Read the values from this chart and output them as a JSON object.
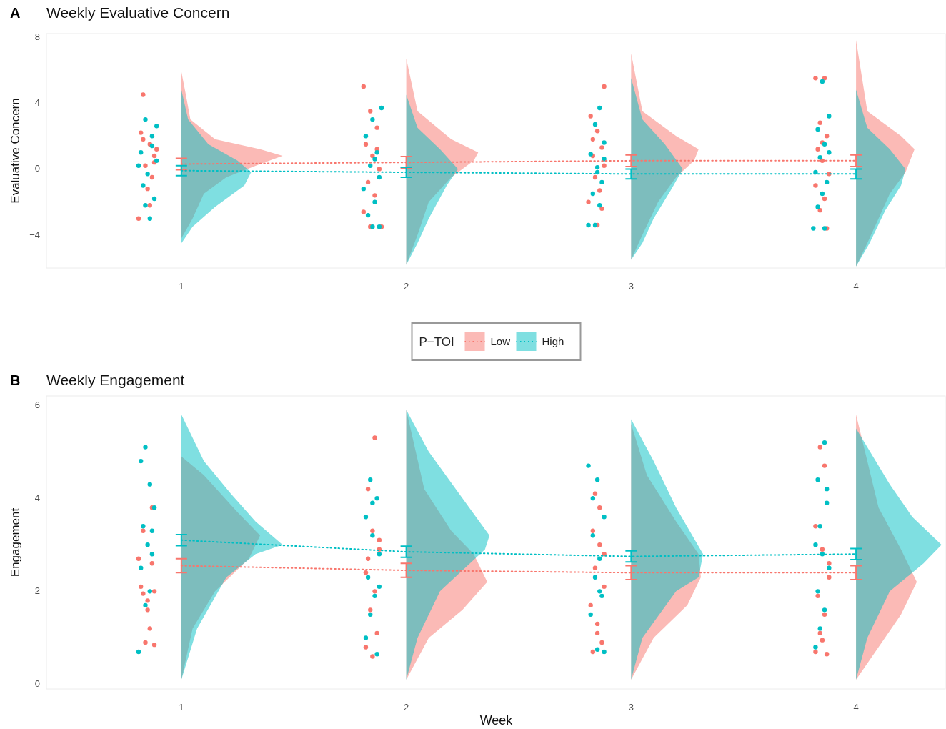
{
  "chart_data": [
    {
      "type": "scatter",
      "title": "Weekly Evaluative Concern",
      "ylabel": "Evaluative Concern",
      "annotations": [
        "A"
      ],
      "legend_title": "P−TOI",
      "legend": "bottom",
      "grid": false,
      "xlim": [
        0.4,
        4.4
      ],
      "xticks": [
        1,
        2,
        3,
        4
      ],
      "ylim": [
        -6,
        8.2
      ],
      "yticks": [
        -4,
        0,
        4,
        8
      ],
      "series": [
        {
          "type": "area",
          "color": "#f8766d",
          "x": [
            1,
            1.05,
            1.1,
            1.2,
            1.35,
            1.45,
            1.35,
            1.15,
            1.04,
            1.02,
            1,
            null,
            2,
            2.05,
            2.1,
            2.2,
            2.3,
            2.32,
            2.2,
            2.05,
            2,
            null,
            3,
            3.05,
            3.12,
            3.2,
            3.28,
            3.3,
            3.2,
            3.05,
            3,
            null,
            4,
            4.05,
            4.1,
            4.15,
            4.22,
            4.26,
            4.2,
            4.05,
            4
          ],
          "values": [
            -4.2,
            -3,
            -1.5,
            -0.5,
            0.3,
            0.8,
            1.2,
            1.8,
            3,
            4.5,
            5.9,
            null,
            -5.8,
            -4,
            -2,
            -0.5,
            0.5,
            1,
            1.8,
            3.5,
            6.7,
            null,
            -5.5,
            -4,
            -2,
            -0.5,
            0.5,
            1.2,
            2,
            3.5,
            7,
            null,
            -5.9,
            -4.5,
            -3,
            -1.5,
            -0.2,
            1.2,
            2,
            3.5,
            7.8
          ]
        },
        {
          "type": "area",
          "color": "#00bfc4",
          "x": [
            1,
            1.05,
            1.15,
            1.28,
            1.31,
            1.25,
            1.12,
            1.03,
            1,
            null,
            2,
            2.05,
            2.1,
            2.18,
            2.23,
            2.15,
            2.05,
            2,
            null,
            3,
            3.05,
            3.1,
            3.18,
            3.23,
            3.15,
            3.05,
            3,
            null,
            4,
            4.06,
            4.13,
            4.2,
            4.22,
            4.15,
            4.05,
            4
          ],
          "values": [
            -4.5,
            -3.5,
            -2.3,
            -1,
            -0.2,
            0.5,
            1.5,
            3,
            4.8,
            null,
            -5.8,
            -4.5,
            -3,
            -1,
            0,
            1.2,
            2.5,
            4.5,
            null,
            -5.5,
            -4.5,
            -3,
            -1.2,
            0,
            1.5,
            3,
            5.5,
            null,
            -5.9,
            -4.5,
            -2.5,
            -1,
            0,
            1.2,
            2.5,
            4.8
          ]
        },
        {
          "type": "scatter",
          "color": "#f8766d",
          "x": [
            0.83,
            0.86,
            0.88,
            0.84,
            0.87,
            0.82,
            0.89,
            0.85,
            0.81,
            0.86,
            0.88,
            0.83,
            1.81,
            1.84,
            1.87,
            1.82,
            1.85,
            1.88,
            1.83,
            1.86,
            1.81,
            1.89,
            1.84,
            1.87,
            2.82,
            2.85,
            2.87,
            2.83,
            2.88,
            2.84,
            2.86,
            2.81,
            2.87,
            2.85,
            2.88,
            2.83,
            3.82,
            3.86,
            3.84,
            3.87,
            3.83,
            3.85,
            3.88,
            3.82,
            3.86,
            3.84,
            3.87,
            3.85
          ],
          "values": [
            4.5,
            1.5,
            0.8,
            0.2,
            -0.5,
            2.2,
            1.2,
            -1.2,
            -3,
            -2.2,
            0.4,
            1.8,
            5,
            3.5,
            2.5,
            1.5,
            0.8,
            0,
            -0.8,
            -1.6,
            -2.6,
            -3.5,
            -3.5,
            1.2,
            3.2,
            2.3,
            1.3,
            0.8,
            0.2,
            -0.5,
            -1.3,
            -2,
            -2.4,
            -3.4,
            5,
            1.8,
            5.5,
            5.5,
            2.8,
            2,
            1.2,
            0.5,
            -0.3,
            -1,
            -1.8,
            -2.5,
            -3.6,
            1.6
          ]
        },
        {
          "type": "scatter",
          "color": "#00bfc4",
          "x": [
            0.84,
            0.87,
            0.82,
            0.89,
            0.85,
            0.83,
            0.88,
            0.86,
            0.81,
            0.87,
            0.84,
            0.89,
            1.89,
            1.85,
            1.82,
            1.87,
            1.84,
            1.88,
            1.81,
            1.86,
            1.83,
            1.85,
            1.88,
            1.86,
            2.86,
            2.84,
            2.88,
            2.82,
            2.85,
            2.87,
            2.83,
            2.86,
            2.84,
            2.81,
            2.88,
            2.85,
            3.85,
            3.88,
            3.83,
            3.86,
            3.84,
            3.82,
            3.87,
            3.85,
            3.83,
            3.86,
            3.81,
            3.88
          ],
          "values": [
            3,
            2,
            1,
            0.5,
            -0.3,
            -1,
            -1.8,
            -3,
            0.2,
            1.4,
            -2.2,
            2.6,
            3.7,
            3,
            2,
            1,
            0.2,
            -0.5,
            -1.2,
            -2,
            -2.8,
            -3.5,
            -3.5,
            0.6,
            3.7,
            2.7,
            1.6,
            0.9,
            0.1,
            -0.8,
            -1.5,
            -2.2,
            -3.4,
            -3.4,
            0.6,
            -0.2,
            5.3,
            3.2,
            2.4,
            1.5,
            0.7,
            -0.2,
            -0.8,
            -1.5,
            -2.3,
            -3.6,
            -3.6,
            1
          ]
        },
        {
          "type": "line",
          "name": "Low",
          "color": "#f8766d",
          "line_style": "dotted",
          "marker": "none",
          "x": [
            1,
            2,
            3,
            4
          ],
          "values": [
            0.3,
            0.4,
            0.5,
            0.5
          ],
          "errors": [
            0.35,
            0.35,
            0.35,
            0.35
          ]
        },
        {
          "type": "line",
          "name": "High",
          "color": "#00bfc4",
          "line_style": "dotted",
          "marker": "none",
          "x": [
            1,
            2,
            3,
            4
          ],
          "values": [
            -0.1,
            -0.2,
            -0.3,
            -0.3
          ],
          "errors": [
            0.3,
            0.3,
            0.3,
            0.3
          ]
        }
      ]
    },
    {
      "type": "scatter",
      "title": "Weekly Engagement",
      "ylabel": "Engagement",
      "xlabel": "Week",
      "annotations": [
        "B"
      ],
      "grid": false,
      "xlim": [
        0.4,
        4.4
      ],
      "xticks": [
        1,
        2,
        3,
        4
      ],
      "ylim": [
        -0.1,
        6.2
      ],
      "yticks": [
        0,
        2,
        4,
        6
      ],
      "series": [
        {
          "type": "area",
          "color": "#f8766d",
          "x": [
            1,
            1.05,
            1.15,
            1.3,
            1.35,
            1.25,
            1.1,
            1,
            null,
            2,
            2.1,
            2.25,
            2.36,
            2.3,
            2.2,
            2.08,
            2,
            null,
            3,
            3.1,
            3.25,
            3.31,
            3.3,
            3.2,
            3.07,
            3,
            null,
            4,
            4.1,
            4.2,
            4.27,
            4.2,
            4.1,
            4.05,
            4
          ],
          "values": [
            0.1,
            1.2,
            2,
            2.7,
            3.2,
            3.7,
            4.5,
            4.9,
            null,
            0.1,
            1,
            1.6,
            2.2,
            2.8,
            3.3,
            4.2,
            5.9,
            null,
            0.1,
            1,
            1.7,
            2.3,
            2.8,
            3.5,
            4.5,
            5.6,
            null,
            0.1,
            0.8,
            1.5,
            2.2,
            2.9,
            3.8,
            4.8,
            5.8
          ]
        },
        {
          "type": "area",
          "color": "#00bfc4",
          "x": [
            1,
            1.07,
            1.2,
            1.33,
            1.45,
            1.33,
            1.22,
            1.1,
            1,
            null,
            2,
            2.05,
            2.15,
            2.35,
            2.37,
            2.28,
            2.1,
            2,
            null,
            3,
            3.05,
            3.2,
            3.3,
            3.32,
            3.2,
            3.1,
            3,
            null,
            4,
            4.05,
            4.15,
            4.3,
            4.38,
            4.25,
            4.15,
            4
          ],
          "values": [
            0.1,
            1.2,
            2.3,
            2.8,
            3,
            3.5,
            4.1,
            4.8,
            5.8,
            null,
            0.1,
            1,
            2,
            2.9,
            3.2,
            3.8,
            5,
            5.9,
            null,
            0.1,
            1,
            2,
            2.3,
            2.8,
            3.8,
            4.8,
            5.7,
            null,
            0.1,
            1,
            2,
            2.6,
            3,
            3.6,
            4.3,
            5.5
          ]
        },
        {
          "type": "scatter",
          "color": "#f8766d",
          "x": [
            0.82,
            0.85,
            0.87,
            0.83,
            0.88,
            0.84,
            0.86,
            0.81,
            0.85,
            0.87,
            0.83,
            0.88,
            1.86,
            1.83,
            1.85,
            1.88,
            1.82,
            1.86,
            1.84,
            1.87,
            1.82,
            1.85,
            1.88,
            1.83,
            2.83,
            2.86,
            2.84,
            2.88,
            2.82,
            2.85,
            2.87,
            2.83,
            2.86,
            2.84,
            2.88,
            2.85,
            3.84,
            3.86,
            3.82,
            3.85,
            3.88,
            3.83,
            3.86,
            3.84,
            3.82,
            3.87,
            3.85,
            3.88
          ],
          "values": [
            2.1,
            1.8,
            2.6,
            3.3,
            2,
            0.9,
            1.2,
            2.7,
            1.6,
            3.8,
            1.95,
            0.85,
            5.3,
            4.2,
            3.3,
            2.9,
            2.4,
            2,
            1.6,
            1.1,
            0.8,
            0.6,
            3.1,
            2.7,
            3.3,
            3,
            2.5,
            2.1,
            1.7,
            1.3,
            0.9,
            0.7,
            3.8,
            4.1,
            2.8,
            1.1,
            5.1,
            4.7,
            3.4,
            2.9,
            2.3,
            1.9,
            1.5,
            1.1,
            0.7,
            0.65,
            0.95,
            2.6
          ]
        },
        {
          "type": "scatter",
          "color": "#00bfc4",
          "x": [
            0.84,
            0.82,
            0.86,
            0.88,
            0.83,
            0.85,
            0.87,
            0.82,
            0.86,
            0.84,
            0.81,
            0.87,
            1.84,
            1.87,
            1.82,
            1.85,
            1.88,
            1.83,
            1.86,
            1.84,
            1.82,
            1.87,
            1.85,
            1.88,
            2.81,
            2.85,
            2.88,
            2.83,
            2.86,
            2.84,
            2.87,
            2.82,
            2.85,
            2.88,
            2.83,
            2.86,
            3.86,
            3.83,
            3.87,
            3.84,
            3.82,
            3.85,
            3.88,
            3.83,
            3.86,
            3.84,
            3.82,
            3.87
          ],
          "values": [
            5.1,
            4.8,
            4.3,
            3.8,
            3.4,
            3,
            2.8,
            2.5,
            2,
            1.7,
            0.7,
            3.3,
            4.4,
            4,
            3.6,
            3.2,
            2.8,
            2.3,
            1.9,
            1.5,
            1,
            0.65,
            3.9,
            2.1,
            4.7,
            4.4,
            3.6,
            3.2,
            2.7,
            2.3,
            1.9,
            1.5,
            0.75,
            0.7,
            4,
            2,
            5.2,
            4.4,
            3.9,
            3.4,
            3,
            2.8,
            2.5,
            2,
            1.6,
            1.2,
            0.8,
            4.2
          ]
        },
        {
          "type": "line",
          "color": "#f8766d",
          "line_style": "dotted",
          "marker": "none",
          "x": [
            1,
            2,
            3,
            4
          ],
          "values": [
            2.55,
            2.45,
            2.4,
            2.4
          ],
          "errors": [
            0.15,
            0.15,
            0.15,
            0.15
          ]
        },
        {
          "type": "line",
          "color": "#00bfc4",
          "line_style": "dotted",
          "marker": "none",
          "x": [
            1,
            2,
            3,
            4
          ],
          "values": [
            3.1,
            2.85,
            2.75,
            2.8
          ],
          "errors": [
            0.12,
            0.12,
            0.12,
            0.12
          ]
        }
      ]
    }
  ]
}
